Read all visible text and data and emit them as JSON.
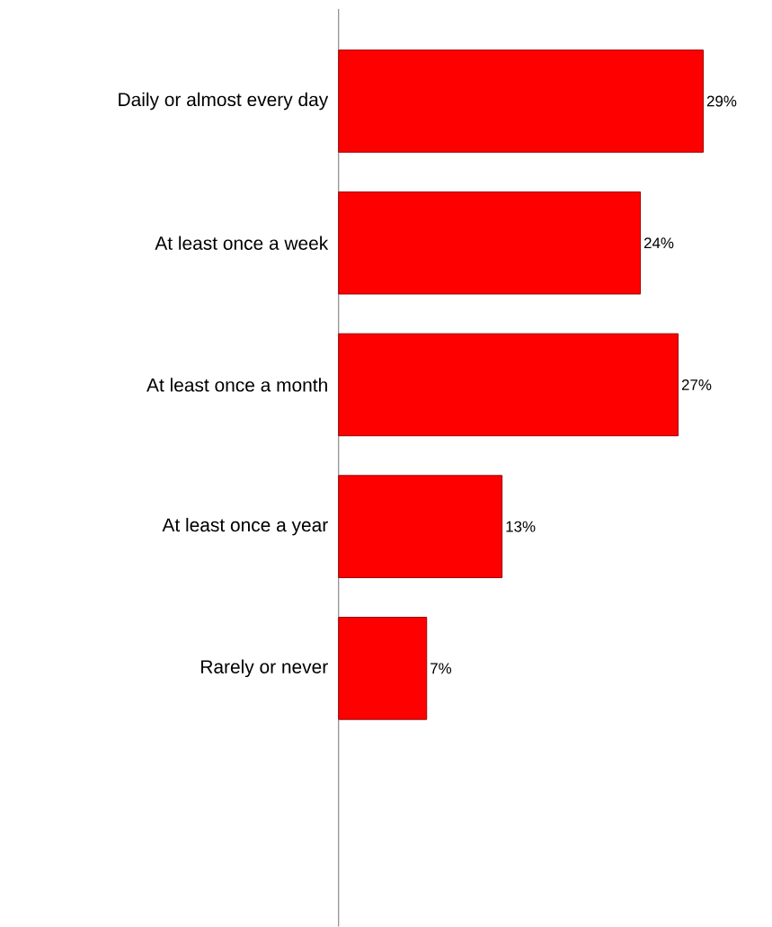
{
  "chart_data": {
    "type": "bar",
    "orientation": "horizontal",
    "categories": [
      "Daily or almost every day",
      "At least once a week",
      "At least once a month",
      "At least once a year",
      "Rarely or never"
    ],
    "values": [
      29,
      24,
      27,
      13,
      7
    ],
    "value_labels": [
      "29%",
      "24%",
      "27%",
      "13%",
      "7%"
    ],
    "color": "#ff0000"
  }
}
